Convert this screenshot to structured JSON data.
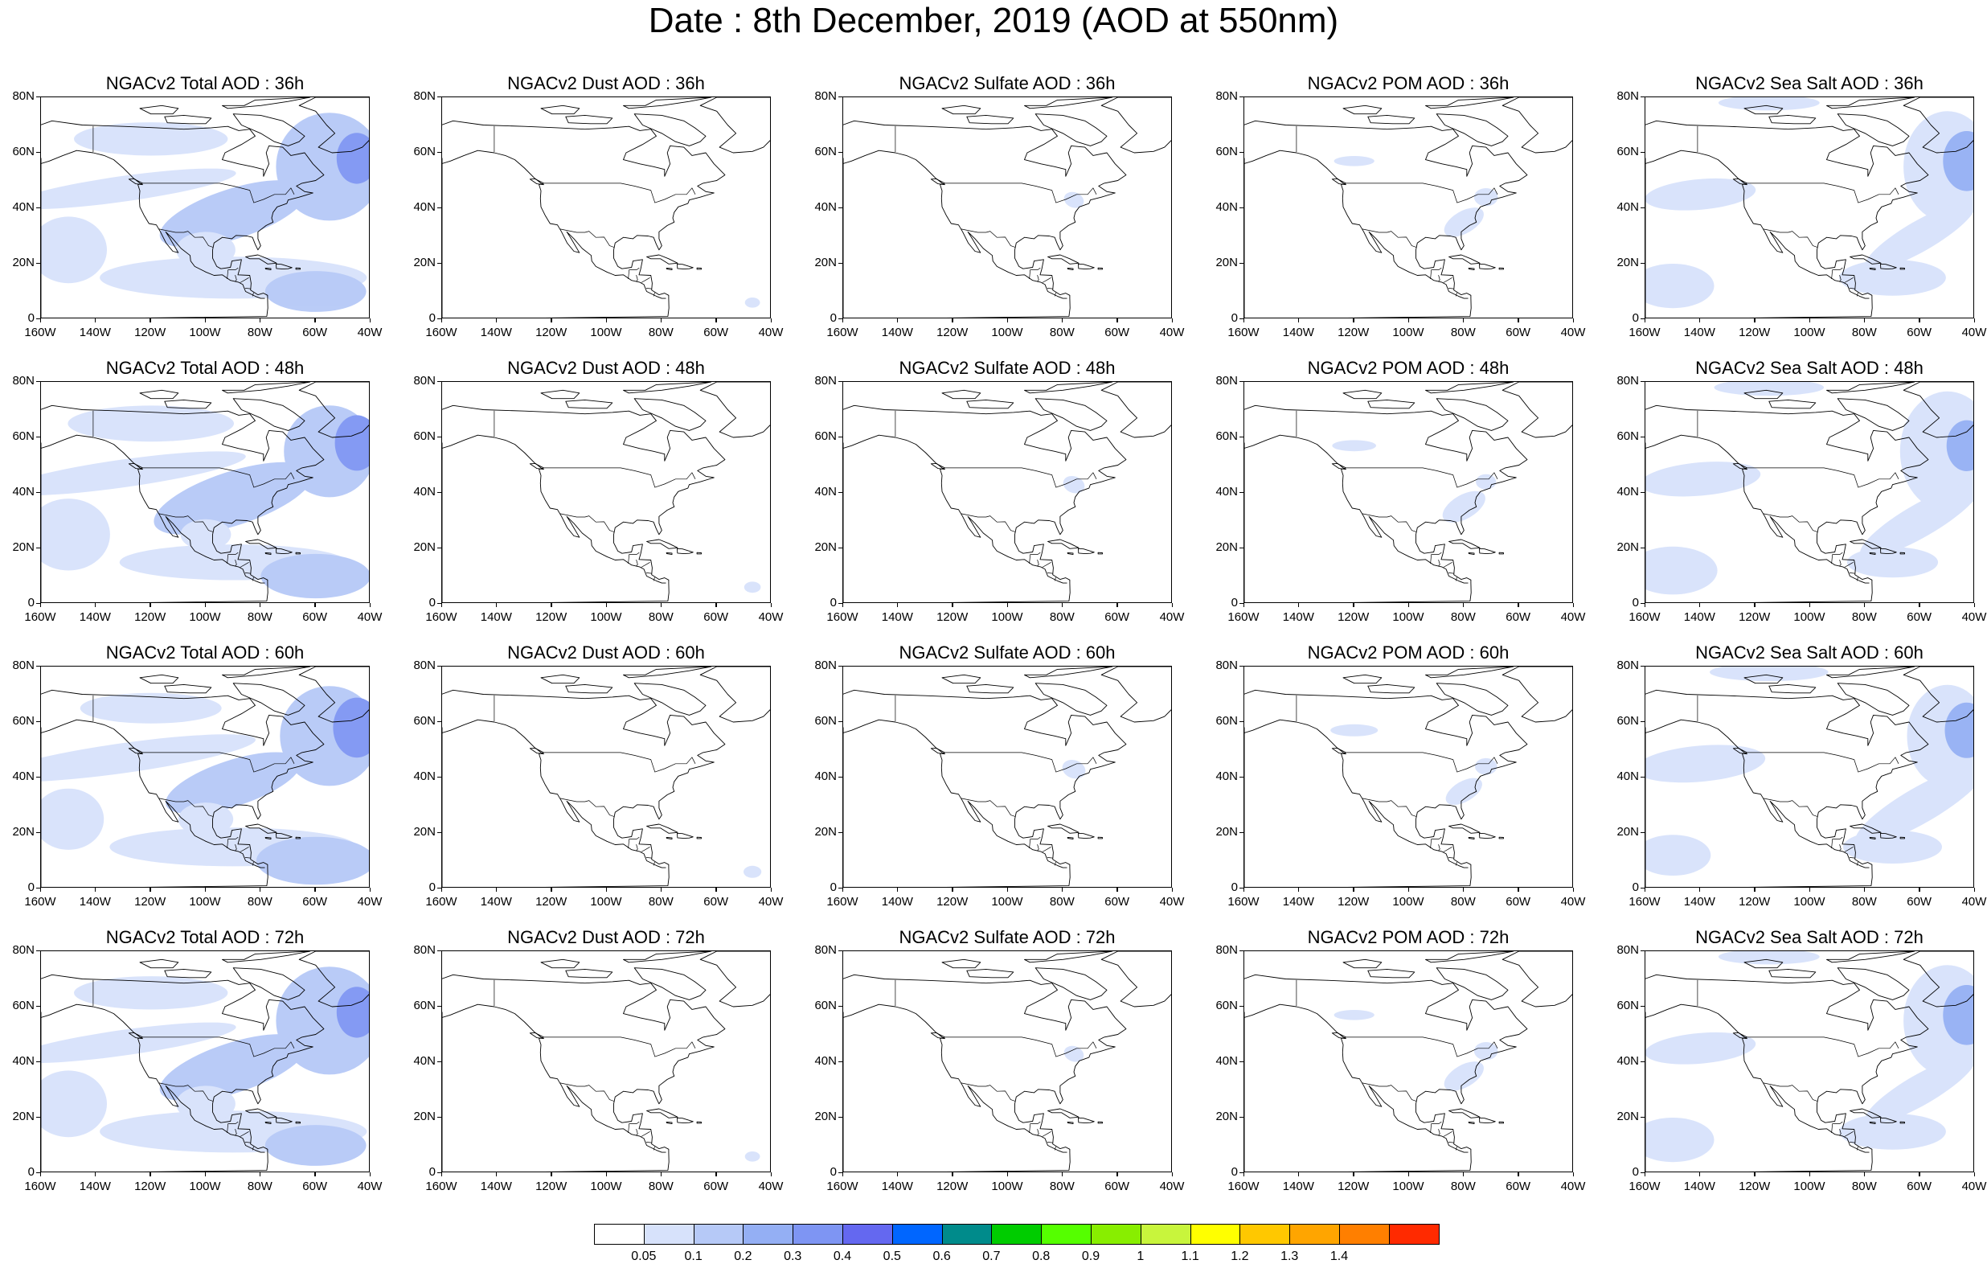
{
  "title": "Date : 8th December, 2019 (AOD at 550nm)",
  "columns": [
    {
      "key": "total",
      "label": "NGACv2 Total AOD"
    },
    {
      "key": "dust",
      "label": "NGACv2 Dust AOD"
    },
    {
      "key": "sulfate",
      "label": "NGACv2 Sulfate AOD"
    },
    {
      "key": "pom",
      "label": "NGACv2 POM AOD"
    },
    {
      "key": "seasalt",
      "label": "NGACv2 Sea Salt AOD"
    }
  ],
  "panels": [
    {
      "id": "r1c1",
      "title": "NGACv2 Total AOD : 36h"
    },
    {
      "id": "r1c2",
      "title": "NGACv2 Dust AOD : 36h"
    },
    {
      "id": "r1c3",
      "title": "NGACv2 Sulfate AOD : 36h"
    },
    {
      "id": "r1c4",
      "title": "NGACv2 POM AOD : 36h"
    },
    {
      "id": "r1c5",
      "title": "NGACv2 Sea Salt AOD : 36h"
    },
    {
      "id": "r2c1",
      "title": "NGACv2 Total AOD : 48h"
    },
    {
      "id": "r2c2",
      "title": "NGACv2 Dust AOD : 48h"
    },
    {
      "id": "r2c3",
      "title": "NGACv2 Sulfate AOD : 48h"
    },
    {
      "id": "r2c4",
      "title": "NGACv2 POM AOD : 48h"
    },
    {
      "id": "r2c5",
      "title": "NGACv2 Sea Salt AOD : 48h"
    },
    {
      "id": "r3c1",
      "title": "NGACv2 Total AOD : 60h"
    },
    {
      "id": "r3c2",
      "title": "NGACv2 Dust AOD : 60h"
    },
    {
      "id": "r3c3",
      "title": "NGACv2 Sulfate AOD : 60h"
    },
    {
      "id": "r3c4",
      "title": "NGACv2 POM AOD : 60h"
    },
    {
      "id": "r3c5",
      "title": "NGACv2 Sea Salt AOD : 60h"
    },
    {
      "id": "r4c1",
      "title": "NGACv2 Total AOD : 72h"
    },
    {
      "id": "r4c2",
      "title": "NGACv2 Dust AOD : 72h"
    },
    {
      "id": "r4c3",
      "title": "NGACv2 Sulfate AOD : 72h"
    },
    {
      "id": "r4c4",
      "title": "NGACv2 POM AOD : 72h"
    },
    {
      "id": "r4c5",
      "title": "NGACv2 Sea Salt  AOD : 72h"
    }
  ],
  "axes": {
    "lat_labels": [
      "80N",
      "60N",
      "40N",
      "20N",
      "0"
    ],
    "lon_labels": [
      "160W",
      "140W",
      "120W",
      "100W",
      "80W",
      "60W",
      "40W"
    ]
  },
  "colorbar": {
    "colors": [
      "#ffffff",
      "#d7e2fb",
      "#b6c9f7",
      "#94aff4",
      "#7e95f3",
      "#6468f0",
      "#0066ff",
      "#008b8b",
      "#00cc00",
      "#55ff00",
      "#88ee00",
      "#c8f53c",
      "#ffff00",
      "#ffc800",
      "#ffa500",
      "#ff7f00",
      "#ff2a00"
    ],
    "labels": [
      "0.05",
      "0.1",
      "0.2",
      "0.3",
      "0.4",
      "0.5",
      "0.6",
      "0.7",
      "0.8",
      "0.9",
      "1",
      "1.1",
      "1.2",
      "1.3",
      "1.4"
    ]
  }
}
